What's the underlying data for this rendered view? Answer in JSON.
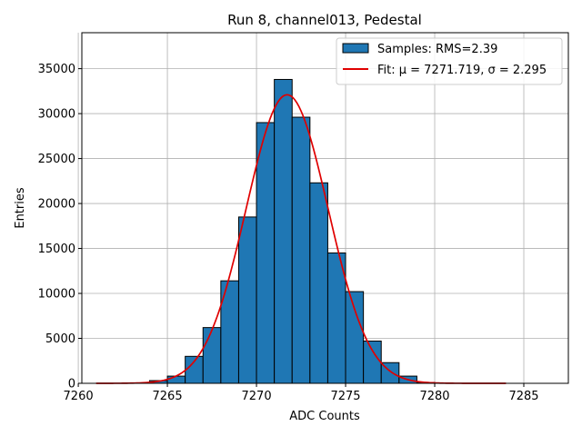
{
  "chart_data": {
    "type": "bar",
    "title": "Run 8, channel013, Pedestal",
    "xlabel": "ADC Counts",
    "ylabel": "Entries",
    "xlim": [
      7260.2,
      7287.5
    ],
    "ylim": [
      0,
      39000
    ],
    "xticks": [
      7260,
      7265,
      7270,
      7275,
      7280,
      7285
    ],
    "yticks": [
      0,
      5000,
      10000,
      15000,
      20000,
      25000,
      30000,
      35000
    ],
    "grid": true,
    "legend_position": "top-right",
    "bin_width": 1,
    "bins": [
      {
        "x": 7264,
        "count": 300
      },
      {
        "x": 7265,
        "count": 800
      },
      {
        "x": 7266,
        "count": 3000
      },
      {
        "x": 7267,
        "count": 6200
      },
      {
        "x": 7268,
        "count": 11400
      },
      {
        "x": 7269,
        "count": 18500
      },
      {
        "x": 7270,
        "count": 29000
      },
      {
        "x": 7271,
        "count": 33800
      },
      {
        "x": 7272,
        "count": 29600
      },
      {
        "x": 7273,
        "count": 22300
      },
      {
        "x": 7274,
        "count": 14500
      },
      {
        "x": 7275,
        "count": 10200
      },
      {
        "x": 7276,
        "count": 4700
      },
      {
        "x": 7277,
        "count": 2300
      },
      {
        "x": 7278,
        "count": 800
      },
      {
        "x": 7279,
        "count": 100
      }
    ],
    "fit": {
      "mu": 7271.719,
      "sigma": 2.295,
      "amplitude": 32100,
      "x_range": [
        7261,
        7284
      ]
    },
    "series": [
      {
        "name": "Samples: RMS=2.39",
        "kind": "histogram",
        "color": "#1f77b4",
        "edge_color": "#000000"
      },
      {
        "name": "Fit: μ = 7271.719, σ = 2.295",
        "kind": "line",
        "color": "#e00000"
      }
    ]
  }
}
